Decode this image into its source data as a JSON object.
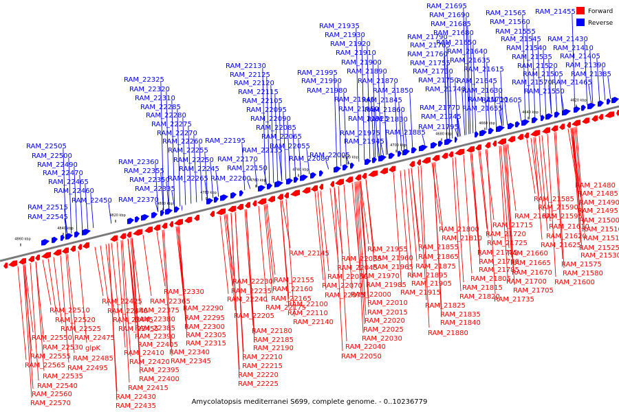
{
  "caption": "Amycolatopsis mediterranei S699, complete genome. - 0..10236779",
  "legend": [
    {
      "label": "Forward",
      "color": "#ff0000"
    },
    {
      "label": "Reverse",
      "color": "#0000ff"
    }
  ],
  "colors": {
    "forward": "#ff0000",
    "reverse": "#0000ff",
    "axis": "#7a7a7a",
    "text": "#000000"
  },
  "kbp_ticks": [
    "4860 kbp",
    "4840 kbp",
    "4820 kbp",
    "4800 kbp",
    "4780 kbp",
    "4760 kbp",
    "4740 kbp",
    "4720 kbp",
    "4700 kbp",
    "4680 kbp",
    "4660 kbp",
    "4640 kbp",
    "4620 kbp"
  ],
  "reverse_labels": [
    "RAM_22505",
    "RAM_22500",
    "RAM_22490",
    "RAM_22470",
    "RAM_22465",
    "RAM_22460",
    "RAM_22450",
    "RAM_22515",
    "RAM_22545",
    "RAM_22325",
    "RAM_22320",
    "RAM_22310",
    "RAM_22285",
    "RAM_22280",
    "RAM_22275",
    "RAM_22270",
    "RAM_22260",
    "RAM_22255",
    "RAM_22250",
    "RAM_22245",
    "RAM_22265",
    "RAM_22360",
    "RAM_22355",
    "RAM_22350",
    "RAM_22335",
    "RAM_22370",
    "RAM_22130",
    "RAM_22125",
    "RAM_22120",
    "RAM_22115",
    "RAM_22105",
    "RAM_22095",
    "RAM_22090",
    "RAM_22085",
    "RAM_22065",
    "RAM_22055",
    "RAM_22195",
    "RAM_22170",
    "RAM_22135",
    "RAM_22150",
    "RAM_22080",
    "RAM_22200",
    "RAM_22005",
    "RAM_21995",
    "RAM_21990",
    "RAM_21980",
    "RAM_21975",
    "RAM_21945",
    "RAM_21935",
    "RAM_21930",
    "RAM_21920",
    "RAM_21910",
    "RAM_21900",
    "RAM_21890",
    "RAM_21870",
    "RAM_21850",
    "RAM_21845",
    "RAM_21860",
    "RAM_21830",
    "RAM_21885",
    "RAM_21940",
    "RAM_21950",
    "RAM_21925",
    "RAM_21790",
    "RAM_21765",
    "RAM_21760",
    "RAM_21755",
    "RAM_21730",
    "RAM_21750",
    "RAM_21740",
    "RAM_21770",
    "RAM_21745",
    "RAM_21795",
    "RAM_21695",
    "RAM_21690",
    "RAM_21685",
    "RAM_21680",
    "RAM_21650",
    "RAM_21640",
    "RAM_21635",
    "RAM_21615",
    "RAM_21645",
    "RAM_21630",
    "RAM_21710",
    "RAM_21655",
    "RAM_21565",
    "RAM_21560",
    "RAM_21555",
    "RAM_21545",
    "RAM_21540",
    "RAM_21535",
    "RAM_21520",
    "RAM_21505",
    "RAM_21570",
    "RAM_21550",
    "RAM_21605",
    "RAM_21455",
    "RAM_21430",
    "RAM_21410",
    "RAM_21405",
    "RAM_21390",
    "RAM_21385",
    "RAM_21465"
  ],
  "forward_labels": [
    "RAM_22510",
    "RAM_22520",
    "RAM_22525",
    "RAM_22550",
    "RAM_22530",
    "RAM_22555",
    "RAM_22565",
    "RAM_22535",
    "RAM_22540",
    "RAM_22560",
    "RAM_22570",
    "RAM_22475",
    "glpK",
    "RAM_22485",
    "RAM_22495",
    "RAM_22425",
    "RAM_22440",
    "RAM_22445",
    "RAM_22455",
    "RAM_22410",
    "RAM_22420",
    "RAM_22415",
    "RAM_22430",
    "RAM_22435",
    "RAM_22365",
    "RAM_22375",
    "RAM_22380",
    "RAM_22385",
    "RAM_22390",
    "RAM_22405",
    "RAM_22395",
    "RAM_22400",
    "RAM_22330",
    "RAM_22290",
    "RAM_22295",
    "RAM_22300",
    "RAM_22305",
    "RAM_22315",
    "RAM_22340",
    "RAM_22345",
    "RAM_22230",
    "RAM_22235",
    "RAM_22240",
    "RAM_22205",
    "RAM_22180",
    "RAM_22185",
    "RAM_22190",
    "RAM_22210",
    "RAM_22215",
    "RAM_22220",
    "RAM_22225",
    "RAM_22145",
    "RAM_22155",
    "RAM_22160",
    "RAM_22165",
    "RAM_22175",
    "RAM_22140",
    "RAM_22100",
    "RAM_22110",
    "RAM_22035",
    "RAM_22045",
    "RAM_22060",
    "RAM_22070",
    "RAM_22075",
    "RAM_22010",
    "RAM_22015",
    "RAM_22020",
    "RAM_22025",
    "RAM_22030",
    "RAM_22040",
    "RAM_22050",
    "RAM_22000",
    "RAM_21955",
    "RAM_21960",
    "RAM_21965",
    "RAM_21970",
    "RAM_21985",
    "RAM_21855",
    "RAM_21865",
    "RAM_21875",
    "RAM_21895",
    "RAM_21905",
    "RAM_21915",
    "RAM_21825",
    "RAM_21835",
    "RAM_21840",
    "RAM_21880",
    "RAM_21800",
    "RAM_21810",
    "RAM_21775",
    "RAM_21780",
    "RAM_21785",
    "RAM_21805",
    "RAM_21815",
    "RAM_21820",
    "RAM_21675",
    "RAM_21715",
    "RAM_21720",
    "RAM_21725",
    "RAM_21660",
    "RAM_21665",
    "RAM_21670",
    "RAM_21700",
    "RAM_21705",
    "RAM_21735",
    "RAM_21585",
    "RAM_21590",
    "RAM_21595",
    "RAM_21610",
    "RAM_21620",
    "RAM_21625",
    "RAM_21575",
    "RAM_21580",
    "RAM_21600",
    "RAM_21480",
    "RAM_21485",
    "RAM_21490",
    "RAM_21495",
    "RAM_21500",
    "RAM_21510",
    "RAM_21515",
    "RAM_21525",
    "RAM_21530"
  ]
}
